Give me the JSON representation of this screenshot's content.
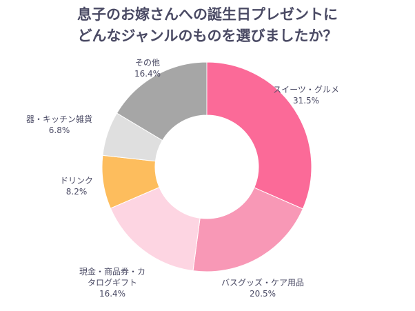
{
  "title_lines": [
    "息子のお嫁さんへの誕生日プレゼントに",
    "どんなジャンルのものを選びましたか？"
  ],
  "chart_data": {
    "type": "pie",
    "variant": "donut",
    "start": "top",
    "direction": "clockwise",
    "slices": [
      {
        "label": [
          "スイーツ・グルメ"
        ],
        "pct_text": "31.5%",
        "value": 31.5,
        "color": "#fb6a98"
      },
      {
        "label": [
          "バスグッズ・ケア用品"
        ],
        "pct_text": "20.5%",
        "value": 20.5,
        "color": "#f898b6"
      },
      {
        "label": [
          "現金・商品券・カ",
          "タログギフト"
        ],
        "pct_text": "16.4%",
        "value": 16.4,
        "color": "#fdd5e2"
      },
      {
        "label": [
          "ドリンク"
        ],
        "pct_text": "8.2%",
        "value": 8.2,
        "color": "#fdbd5d"
      },
      {
        "label": [
          "器・キッチン雑貨"
        ],
        "pct_text": "6.8%",
        "value": 6.8,
        "color": "#dfdfdf"
      },
      {
        "label": [
          "その他"
        ],
        "pct_text": "16.4%",
        "value": 16.4,
        "color": "#a6a6a6"
      }
    ]
  }
}
